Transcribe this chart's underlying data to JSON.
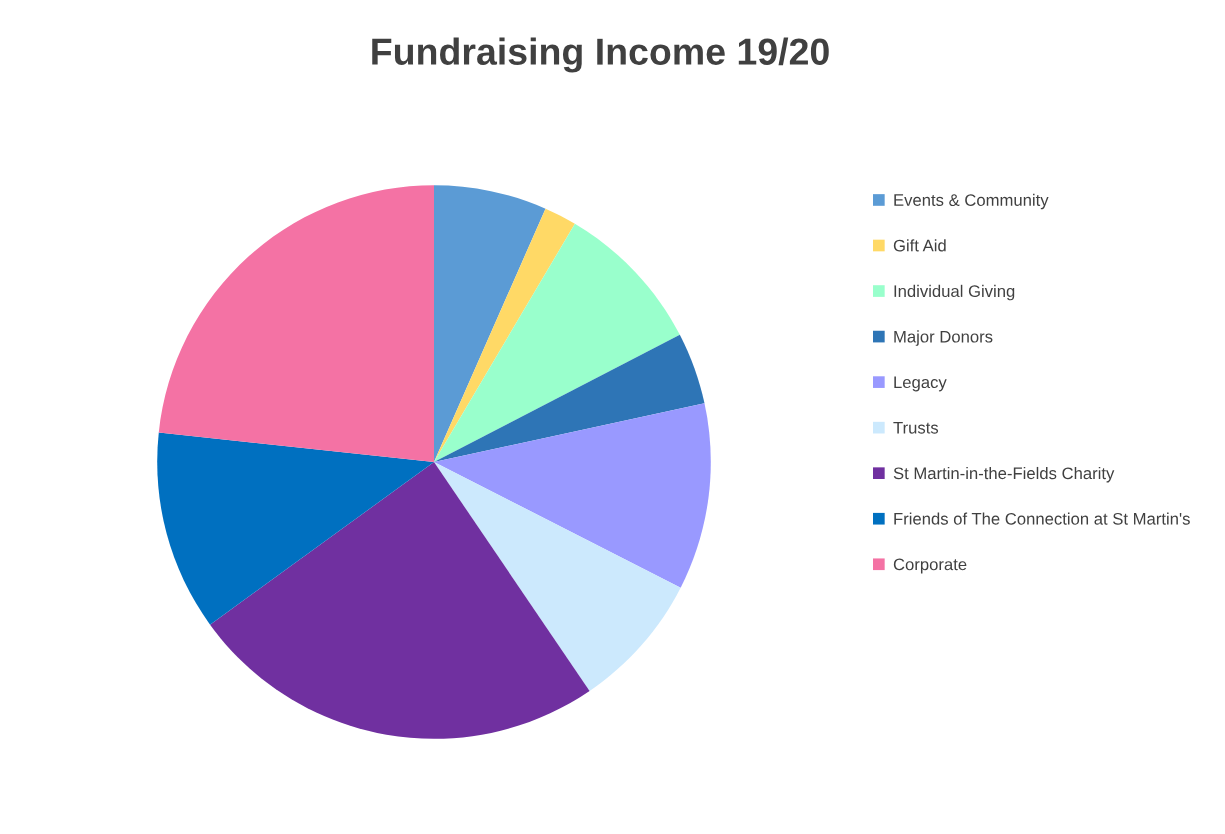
{
  "chart_data": {
    "type": "pie",
    "title": "Fundraising Income 19/20",
    "categories": [
      "Events & Community",
      "Gift Aid",
      "Individual Giving",
      "Major Donors",
      "Legacy",
      "Trusts",
      "St Martin-in-the-Fields Charity",
      "Friends of The Connection at St Martin's",
      "Corporate"
    ],
    "values": [
      6.6,
      1.9,
      8.9,
      4.2,
      10.9,
      8.0,
      24.5,
      11.7,
      23.3
    ],
    "colors": [
      "#5b9bd5",
      "#ffd966",
      "#99ffcc",
      "#2e75b6",
      "#9999ff",
      "#cce9fd",
      "#7030a0",
      "#0070c0",
      "#f472a4"
    ],
    "legend": "right"
  }
}
